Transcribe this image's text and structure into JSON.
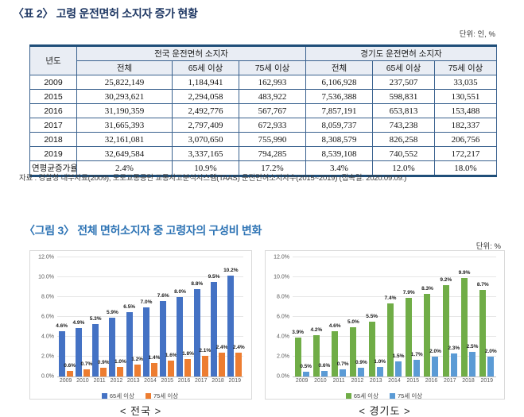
{
  "table_section": {
    "title": "〈표 2〉 고령 운전면허 소지자 증가 현황",
    "unit": "단위: 인, %",
    "header": {
      "year_label": "년도",
      "groups": [
        {
          "label": "전국 운전면허 소지자",
          "cols": [
            "전체",
            "65세 이상",
            "75세 이상"
          ]
        },
        {
          "label": "경기도 운전면허 소지자",
          "cols": [
            "전체",
            "65세 이상",
            "75세 이상"
          ]
        }
      ]
    },
    "rows": [
      {
        "year": "2009",
        "values": [
          "25,822,149",
          "1,184,941",
          "162,993",
          "6,106,928",
          "237,507",
          "33,035"
        ]
      },
      {
        "year": "2015",
        "values": [
          "30,293,621",
          "2,294,058",
          "483,922",
          "7,536,388",
          "598,831",
          "130,551"
        ]
      },
      {
        "year": "2016",
        "values": [
          "31,190,359",
          "2,492,776",
          "567,767",
          "7,857,191",
          "653,813",
          "153,488"
        ]
      },
      {
        "year": "2017",
        "values": [
          "31,665,393",
          "2,797,409",
          "672,933",
          "8,059,737",
          "743,238",
          "182,337"
        ]
      },
      {
        "year": "2018",
        "values": [
          "32,161,081",
          "3,070,650",
          "755,990",
          "8,308,579",
          "826,258",
          "206,756"
        ]
      },
      {
        "year": "2019",
        "values": [
          "32,649,584",
          "3,337,165",
          "794,285",
          "8,539,108",
          "740,552",
          "172,217"
        ]
      },
      {
        "year": "연평균증가율",
        "values": [
          "2.4%",
          "10.9%",
          "17.2%",
          "3.4%",
          "12.0%",
          "18.0%"
        ]
      }
    ],
    "source": "자료 : 경찰청 내부자료(2009), 도로교통공단 교통사고분석시스템(TAAS) 운전면허소지자수(2015~2019) (접속일: 2020.09.09.)"
  },
  "figure_section": {
    "title": "〈그림 3〉 전체 면허소지자 중 고령자의 구성비 변화",
    "unit": "단위: %"
  },
  "chart_data": [
    {
      "type": "bar",
      "title": "< 전국 >",
      "categories": [
        "2009",
        "2010",
        "2011",
        "2012",
        "2013",
        "2014",
        "2015",
        "2016",
        "2017",
        "2018",
        "2019"
      ],
      "series": [
        {
          "name": "65세 이상",
          "color": "#4472c4",
          "values": [
            4.6,
            4.9,
            5.3,
            5.9,
            6.5,
            7.0,
            7.6,
            8.0,
            8.8,
            9.5,
            10.2
          ]
        },
        {
          "name": "75세 이상",
          "color": "#ed7d31",
          "values": [
            0.6,
            0.7,
            0.9,
            1.0,
            1.2,
            1.4,
            1.6,
            1.8,
            2.1,
            2.4,
            2.4
          ]
        }
      ],
      "value_label_suffix": "%",
      "ylabel": "",
      "xlabel": "",
      "ylim": [
        0,
        12
      ],
      "ytick_step": 2,
      "ytick_labels": [
        "12.0%",
        "10.0%",
        "8.0%",
        "6.0%",
        "4.0%",
        "2.0%",
        "0.0%"
      ],
      "grid": true,
      "legend_position": "bottom"
    },
    {
      "type": "bar",
      "title": "< 경기도 >",
      "categories": [
        "2009",
        "2010",
        "2011",
        "2012",
        "2013",
        "2014",
        "2015",
        "2016",
        "2017",
        "2018",
        "2019"
      ],
      "series": [
        {
          "name": "65세 이상",
          "color": "#70ad47",
          "values": [
            3.9,
            4.2,
            4.6,
            5.0,
            5.5,
            7.4,
            7.9,
            8.3,
            9.2,
            9.9,
            8.7
          ]
        },
        {
          "name": "75세 이상",
          "color": "#5b9bd5",
          "values": [
            0.5,
            0.6,
            0.7,
            0.9,
            1.0,
            1.5,
            1.7,
            2.0,
            2.3,
            2.5,
            2.0
          ]
        }
      ],
      "value_label_suffix": "%",
      "ylabel": "",
      "xlabel": "",
      "ylim": [
        0,
        12
      ],
      "ytick_step": 2,
      "ytick_labels": [
        "12.0%",
        "10.0%",
        "8.0%",
        "6.0%",
        "4.0%",
        "2.0%",
        "0.0%"
      ],
      "grid": true,
      "legend_position": "bottom"
    }
  ],
  "colors": {
    "table_border": "#1f4e79",
    "table_header_bg": "#e9edf4",
    "table_title": "#1f3864",
    "figure_title": "#2e74b5"
  }
}
